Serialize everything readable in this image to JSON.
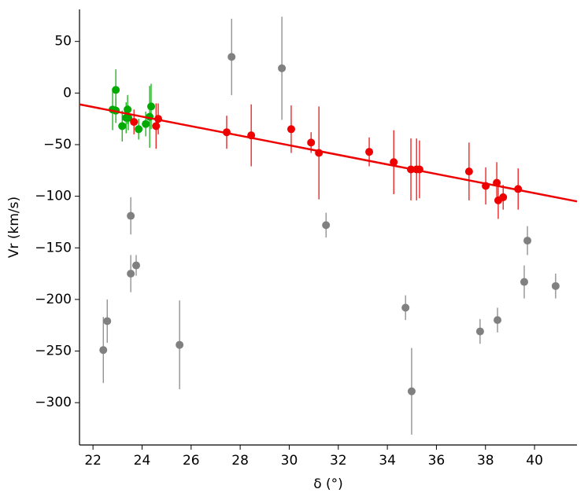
{
  "chart_data": {
    "type": "scatter",
    "x_label": "δ (°)",
    "y_label": "Vr (km/s)",
    "xlim": [
      21.45,
      41.73
    ],
    "ylim": [
      -341,
      81
    ],
    "xticks": [
      22,
      24,
      26,
      28,
      30,
      32,
      34,
      36,
      38,
      40
    ],
    "yticks": [
      {
        "value": -300,
        "label": "−300"
      },
      {
        "value": -250,
        "label": "−250"
      },
      {
        "value": -200,
        "label": "−200"
      },
      {
        "value": -150,
        "label": "−150"
      },
      {
        "value": -100,
        "label": "−100"
      },
      {
        "value": -50,
        "label": "−50"
      },
      0,
      50
    ],
    "series": [
      {
        "color": "#808080",
        "x": [
          22.42,
          22.58,
          23.54,
          23.54,
          23.76,
          25.53,
          27.65,
          29.7,
          31.5,
          34.74,
          34.99,
          37.78,
          38.49,
          39.58,
          39.71,
          40.86
        ],
        "values": [
          -249,
          -221,
          -119,
          -175,
          -167,
          -244,
          35,
          24,
          -128,
          -208,
          -289,
          -231,
          -220,
          -183,
          -143,
          -187
        ],
        "errors": [
          32,
          21,
          18,
          18,
          10,
          43,
          37,
          50,
          12,
          12,
          42,
          12,
          12,
          16,
          14,
          12
        ]
      },
      {
        "color": "#00aa00",
        "x": [
          22.8,
          22.93,
          22.93,
          23.19,
          23.35,
          23.41,
          23.44,
          23.86,
          24.15,
          24.31,
          24.37
        ],
        "values": [
          -16,
          -17,
          3,
          -32,
          -24,
          -16,
          -24,
          -35,
          -30,
          -23,
          -13
        ],
        "errors": [
          20,
          12,
          20,
          15,
          15,
          14,
          12,
          10,
          12,
          30,
          22
        ]
      },
      {
        "color": "#ee0000",
        "x": [
          23.67,
          24.57,
          24.66,
          27.45,
          28.45,
          30.08,
          30.89,
          31.21,
          33.26,
          34.26,
          34.96,
          35.19,
          35.31,
          37.33,
          38.01,
          38.46,
          38.52,
          38.72,
          39.33
        ],
        "values": [
          -28,
          -32,
          -25,
          -38,
          -41,
          -35,
          -48,
          -58,
          -57,
          -67,
          -74,
          -74,
          -74,
          -76,
          -90,
          -87,
          -104,
          -101,
          -93
        ],
        "errors": [
          12,
          22,
          15,
          16,
          30,
          23,
          10,
          45,
          14,
          31,
          30,
          30,
          28,
          28,
          18,
          20,
          18,
          12,
          20
        ]
      }
    ],
    "fit": {
      "color": "#ee0000",
      "x": [
        21.45,
        41.73
      ],
      "values": [
        -11,
        -105
      ]
    }
  }
}
